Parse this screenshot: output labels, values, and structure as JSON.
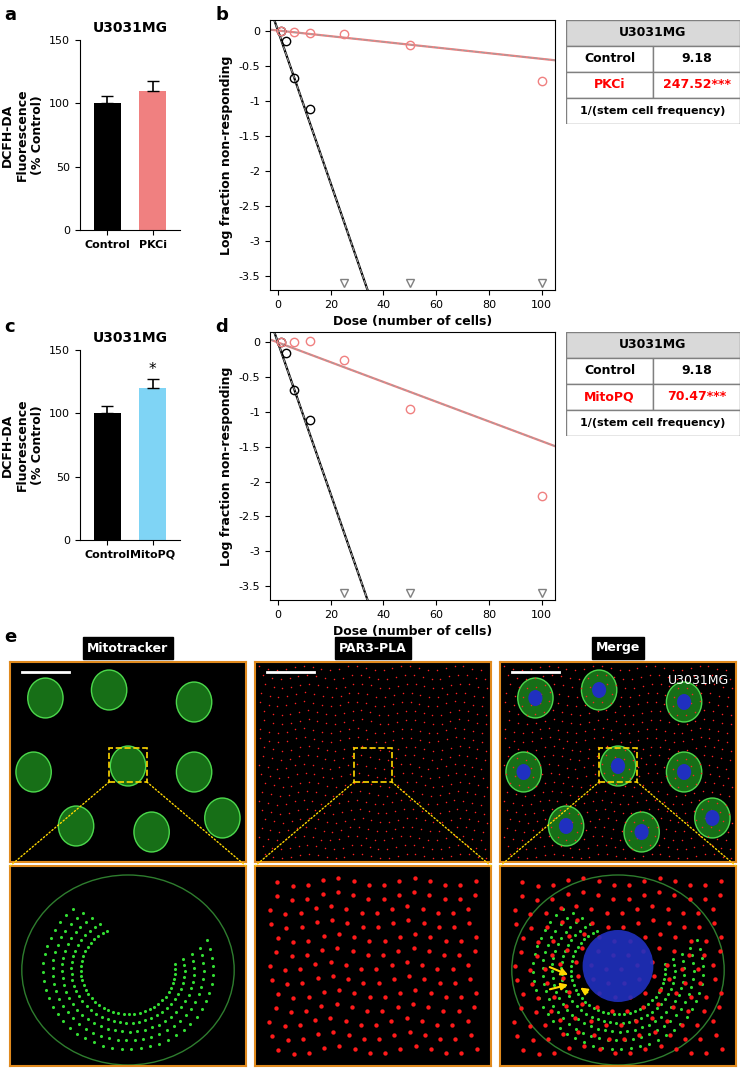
{
  "chart_data": [
    {
      "panel_label": "a",
      "type": "bar",
      "title": "U3031MG",
      "categories": [
        "Control",
        "PKCi"
      ],
      "values": [
        100,
        110
      ],
      "errors": [
        6,
        8
      ],
      "colors": [
        "#000000",
        "#F08080"
      ],
      "ylabel": "DCFH-DA\nFluorescence\n(% Control)",
      "ylim": [
        0,
        150
      ],
      "yticks": [
        0,
        50,
        100,
        150
      ]
    },
    {
      "panel_label": "b",
      "type": "line",
      "xlabel": "Dose (number of cells)",
      "ylabel": "Log fraction non-responding",
      "xlim": [
        -3,
        105
      ],
      "xticks": [
        0,
        20,
        40,
        60,
        80,
        100
      ],
      "ylim": [
        -3.7,
        0.15
      ],
      "yticks": [
        -3.5,
        -3,
        -2.5,
        -2,
        -1.5,
        -1,
        -0.5,
        0
      ],
      "series": [
        {
          "name": "Control",
          "type": "scatter",
          "marker": "circle",
          "color": "#000000",
          "x": [
            1,
            3,
            6,
            12
          ],
          "values": [
            0,
            -0.15,
            -0.68,
            -1.12
          ]
        },
        {
          "name": "Control",
          "type": "scatter",
          "marker": "triangle",
          "color": "#808080",
          "x": [
            25,
            50,
            100
          ],
          "values": [
            -3.6,
            -3.6,
            -3.6
          ]
        },
        {
          "name": "PKCi",
          "type": "scatter",
          "marker": "circle",
          "color": "#F08080",
          "x": [
            1,
            6,
            12,
            25,
            50,
            100
          ],
          "values": [
            0,
            -0.02,
            -0.03,
            -0.05,
            -0.2,
            -0.72
          ]
        }
      ],
      "table": {
        "header": "U3031MG",
        "rows": [
          {
            "name": "Control",
            "value": 9.18,
            "label": "9.18",
            "color": "#000000"
          },
          {
            "name": "PKCi",
            "value": 247.52,
            "label": "247.52***",
            "color": "#FF0000"
          }
        ],
        "footer": "1/(stem cell frequency)"
      }
    },
    {
      "panel_label": "c",
      "type": "bar",
      "title": "U3031MG",
      "categories": [
        "Control",
        "MitoPQ"
      ],
      "values": [
        100,
        120
      ],
      "errors": [
        6,
        7
      ],
      "colors": [
        "#000000",
        "#7FD4F5"
      ],
      "ylabel": "DCFH-DA\nFluorescence\n(% Control)",
      "ylim": [
        0,
        150
      ],
      "yticks": [
        0,
        50,
        100,
        150
      ],
      "annotation": {
        "category": "MitoPQ",
        "text": "*"
      }
    },
    {
      "panel_label": "d",
      "type": "line",
      "xlabel": "Dose (number of cells)",
      "ylabel": "Log fraction non-responding",
      "xlim": [
        -3,
        105
      ],
      "xticks": [
        0,
        20,
        40,
        60,
        80,
        100
      ],
      "ylim": [
        -3.7,
        0.15
      ],
      "yticks": [
        -3.5,
        -3,
        -2.5,
        -2,
        -1.5,
        -1,
        -0.5,
        0
      ],
      "series": [
        {
          "name": "Control",
          "type": "scatter",
          "marker": "circle",
          "color": "#000000",
          "x": [
            1,
            3,
            6,
            12
          ],
          "values": [
            0,
            -0.15,
            -0.68,
            -1.12
          ]
        },
        {
          "name": "Control",
          "type": "scatter",
          "marker": "triangle",
          "color": "#808080",
          "x": [
            25,
            50,
            100
          ],
          "values": [
            -3.6,
            -3.6,
            -3.6
          ]
        },
        {
          "name": "MitoPQ",
          "type": "scatter",
          "marker": "circle",
          "color": "#F08080",
          "x": [
            1,
            6,
            12,
            25,
            50,
            100
          ],
          "values": [
            0,
            0,
            0.02,
            -0.25,
            -0.95,
            -2.2
          ]
        }
      ],
      "table": {
        "header": "U3031MG",
        "rows": [
          {
            "name": "Control",
            "value": 9.18,
            "label": "9.18",
            "color": "#000000"
          },
          {
            "name": "MitoPQ",
            "value": 70.47,
            "label": "70.47***",
            "color": "#FF0000"
          }
        ],
        "footer": "1/(stem cell frequency)"
      }
    }
  ],
  "image_panel": {
    "panel_label": "e",
    "channels": [
      "Mitotracker",
      "PAR3-PLA",
      "Merge"
    ],
    "cell_line": "U3031MG"
  }
}
